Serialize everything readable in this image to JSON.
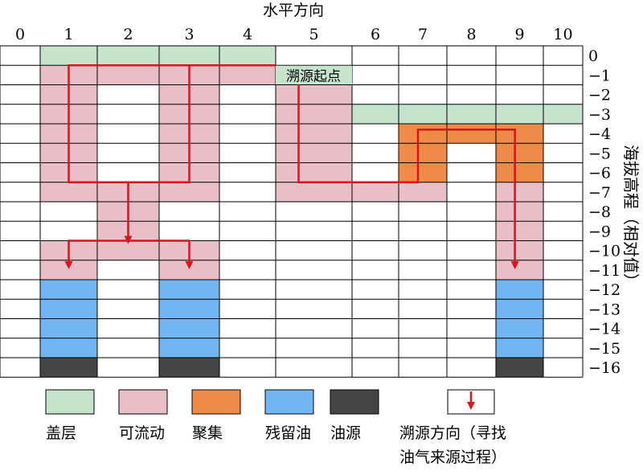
{
  "axes": {
    "x_title": "水平方向",
    "y_title": "海拔高程（相对值）",
    "x_ticks": [
      "0",
      "1",
      "2",
      "3",
      "4",
      "5",
      "6",
      "7",
      "8",
      "9",
      "10"
    ],
    "y_ticks": [
      "0",
      "−1",
      "−2",
      "−3",
      "−4",
      "−5",
      "−6",
      "−7",
      "−8",
      "−9",
      "−10",
      "−11",
      "−12",
      "−13",
      "−14",
      "−15",
      "−16"
    ]
  },
  "colors": {
    "caprock": "#c6e3cc",
    "flowable": "#e8bfc7",
    "accumulation": "#ef8b48",
    "residual_oil": "#6fb6f2",
    "source": "#454545",
    "arrow": "#d9141c"
  },
  "start_label": "溯源起点",
  "cells": {
    "caprock": [
      [
        1,
        0
      ],
      [
        2,
        0
      ],
      [
        3,
        0
      ],
      [
        4,
        0
      ],
      [
        5,
        -1
      ],
      [
        6,
        -3
      ],
      [
        7,
        -3
      ],
      [
        8,
        -3
      ],
      [
        9,
        -3
      ],
      [
        10,
        -3
      ]
    ],
    "flowable": [
      [
        1,
        -1
      ],
      [
        2,
        -1
      ],
      [
        3,
        -1
      ],
      [
        4,
        -1
      ],
      [
        5,
        -2
      ],
      [
        5,
        -3
      ],
      [
        5,
        -4
      ],
      [
        5,
        -5
      ],
      [
        5,
        -6
      ],
      [
        5,
        -7
      ],
      [
        6,
        -7
      ],
      [
        7,
        -7
      ],
      [
        1,
        -2
      ],
      [
        1,
        -3
      ],
      [
        1,
        -4
      ],
      [
        1,
        -5
      ],
      [
        1,
        -6
      ],
      [
        1,
        -7
      ],
      [
        2,
        -7
      ],
      [
        3,
        -7
      ],
      [
        3,
        -2
      ],
      [
        3,
        -3
      ],
      [
        3,
        -4
      ],
      [
        3,
        -5
      ],
      [
        3,
        -6
      ],
      [
        2,
        -8
      ],
      [
        2,
        -9
      ],
      [
        1,
        -10
      ],
      [
        2,
        -10
      ],
      [
        3,
        -10
      ],
      [
        1,
        -11
      ],
      [
        3,
        -11
      ],
      [
        9,
        -7
      ],
      [
        9,
        -8
      ],
      [
        9,
        -9
      ],
      [
        9,
        -10
      ],
      [
        9,
        -11
      ]
    ],
    "accumulation": [
      [
        7,
        -4
      ],
      [
        8,
        -4
      ],
      [
        9,
        -4
      ],
      [
        7,
        -5
      ],
      [
        9,
        -5
      ],
      [
        7,
        -6
      ],
      [
        9,
        -6
      ]
    ],
    "residual_oil": [
      [
        1,
        -12
      ],
      [
        1,
        -13
      ],
      [
        1,
        -14
      ],
      [
        1,
        -15
      ],
      [
        3,
        -12
      ],
      [
        3,
        -13
      ],
      [
        3,
        -14
      ],
      [
        3,
        -15
      ],
      [
        9,
        -12
      ],
      [
        9,
        -13
      ],
      [
        9,
        -14
      ],
      [
        9,
        -15
      ]
    ],
    "source": [
      [
        1,
        -16
      ],
      [
        3,
        -16
      ],
      [
        9,
        -16
      ]
    ]
  },
  "paths": [
    {
      "points": [
        [
          5.0,
          -1.0
        ],
        [
          1.5,
          -1.0
        ],
        [
          1.5,
          -7.0
        ],
        [
          3.5,
          -7.0
        ],
        [
          3.5,
          -1.0
        ]
      ],
      "arrow": false
    },
    {
      "points": [
        [
          2.5,
          -7.0
        ],
        [
          2.5,
          -10.0
        ]
      ],
      "arrow": true
    },
    {
      "points": [
        [
          2.5,
          -10.0
        ],
        [
          1.5,
          -10.0
        ],
        [
          1.5,
          -11.3
        ]
      ],
      "arrow": true
    },
    {
      "points": [
        [
          2.5,
          -10.0
        ],
        [
          3.5,
          -10.0
        ],
        [
          3.5,
          -11.3
        ]
      ],
      "arrow": true
    },
    {
      "points": [
        [
          5.3,
          -1.5
        ],
        [
          5.3,
          -7.0
        ],
        [
          7.4,
          -7.0
        ],
        [
          7.4,
          -4.3
        ],
        [
          9.4,
          -4.3
        ],
        [
          9.4,
          -11.3
        ]
      ],
      "arrow": true
    }
  ],
  "legend": [
    {
      "key": "caprock",
      "label": "盖层"
    },
    {
      "key": "flowable",
      "label": "可流动"
    },
    {
      "key": "accumulation",
      "label": "聚集"
    },
    {
      "key": "residual_oil",
      "label": "残留油"
    },
    {
      "key": "source",
      "label": "油源"
    },
    {
      "key": "direction",
      "label_lines": [
        "溯源方向（寻找",
        "油气来源过程）"
      ]
    }
  ]
}
